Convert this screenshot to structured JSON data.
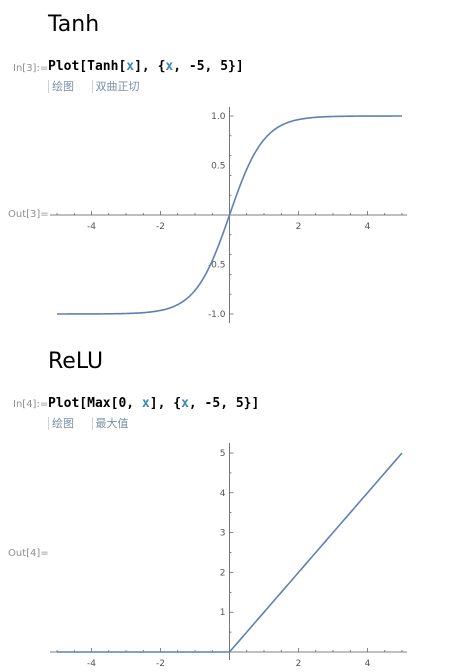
{
  "cells": [
    {
      "title": "Tanh",
      "in_label": "In[3]:=",
      "code": {
        "p1": "Plot[Tanh[",
        "v1": "x",
        "p2": "], {",
        "v2": "x",
        "p3": ", -5, 5}]"
      },
      "suggestions": [
        "绘图",
        "双曲正切"
      ],
      "out_label": "Out[3]="
    },
    {
      "title": "ReLU",
      "in_label": "In[4]:=",
      "code": {
        "p1": "Plot[Max[0, ",
        "v1": "x",
        "p2": "], {",
        "v2": "x",
        "p3": ", -5, 5}]"
      },
      "suggestions": [
        "绘图",
        "最大值"
      ],
      "out_label": "Out[4]="
    }
  ],
  "chart_data": [
    {
      "type": "line",
      "function": "tanh",
      "x_range": [
        -5,
        5
      ],
      "y_range": [
        -1,
        1
      ],
      "x_ticks": [
        "-4",
        "-2",
        "2",
        "4"
      ],
      "y_ticks": [
        "1.0",
        "0.5",
        "-0.5",
        "-1.0"
      ],
      "x_tick_values": [
        -4,
        -2,
        2,
        4
      ],
      "y_tick_values": [
        1.0,
        0.5,
        -0.5,
        -1.0
      ],
      "line_color": "#5e81b5"
    },
    {
      "type": "line",
      "function": "relu",
      "x_range": [
        -5,
        5
      ],
      "y_range": [
        0,
        5
      ],
      "x_ticks": [
        "-4",
        "-2",
        "2",
        "4"
      ],
      "y_ticks": [
        "5",
        "4",
        "3",
        "2",
        "1"
      ],
      "x_tick_values": [
        -4,
        -2,
        2,
        4
      ],
      "y_tick_values": [
        5,
        4,
        3,
        2,
        1
      ],
      "line_color": "#5e81b5"
    }
  ]
}
